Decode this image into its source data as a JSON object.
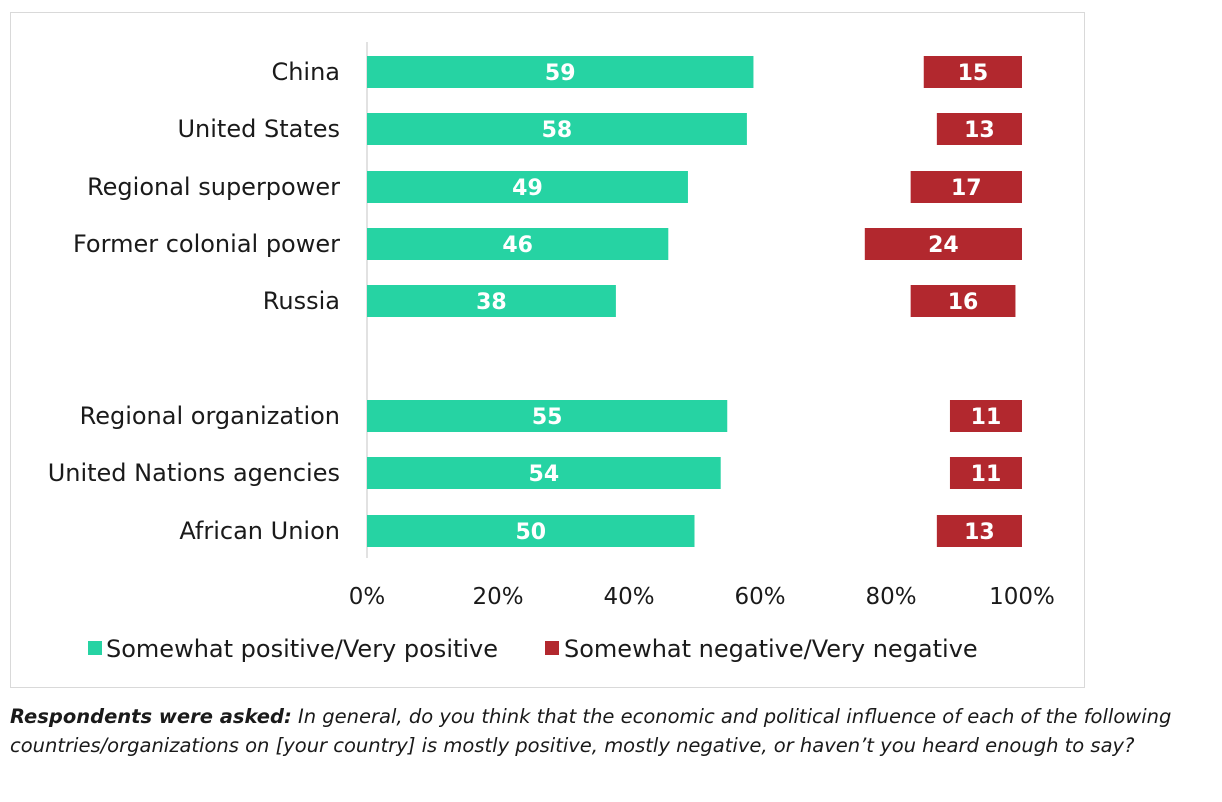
{
  "chart_data": {
    "type": "bar",
    "orientation": "horizontal",
    "categories": [
      "China",
      "United States",
      "Regional superpower",
      "Former colonial power",
      "Russia",
      "Regional organization",
      "United Nations agencies",
      "African Union"
    ],
    "series": [
      {
        "name": "Somewhat positive/Very positive",
        "color": "#26d3a3",
        "values": [
          59,
          58,
          49,
          46,
          38,
          55,
          54,
          50
        ]
      },
      {
        "name": "Somewhat negative/Very negative",
        "color": "#b2282e",
        "values": [
          15,
          13,
          17,
          24,
          16,
          11,
          11,
          13
        ]
      }
    ],
    "negative_bar_ends": [
      100,
      100,
      100,
      100,
      99,
      100,
      100,
      100
    ],
    "group_break_after_index": 4,
    "x_ticks": [
      "0%",
      "20%",
      "40%",
      "60%",
      "80%",
      "100%"
    ],
    "xlim": [
      0,
      100
    ],
    "grid": false,
    "legend_position": "bottom"
  },
  "note": {
    "lead": "Respondents were asked:",
    "text": " In general, do you think that the economic and political influence of each of the following countries/organizations on [your country] is mostly positive, mostly negative, or haven’t you heard enough to say?"
  }
}
